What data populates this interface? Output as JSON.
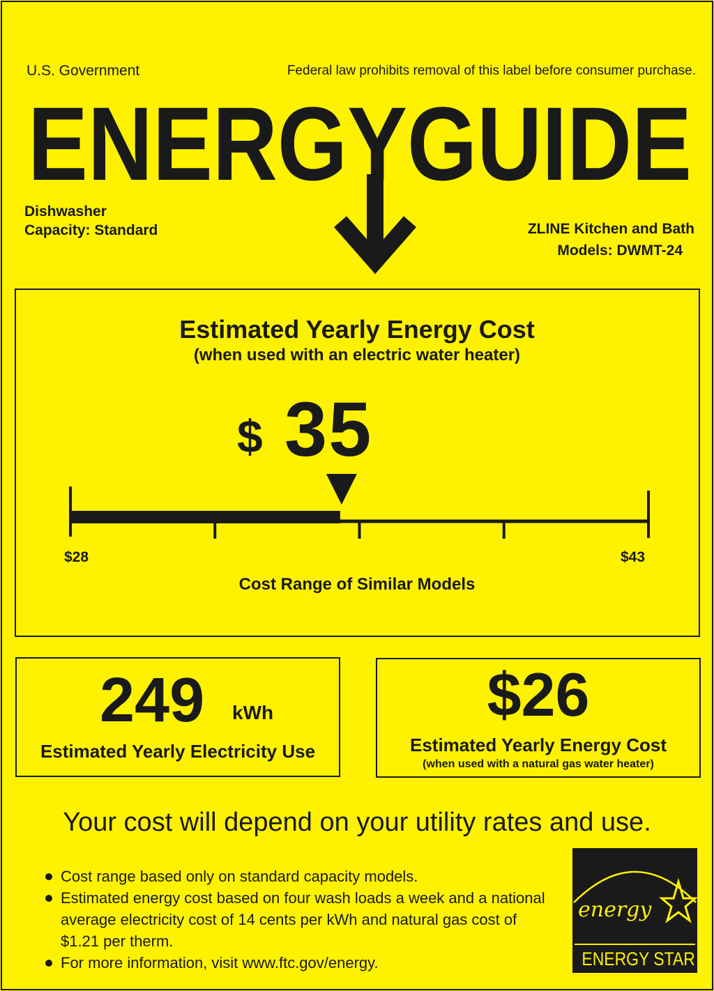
{
  "header": {
    "issuer": "U.S. Government",
    "notice": "Federal law prohibits removal of this label before consumer purchase.",
    "title": "ENERGYGUIDE"
  },
  "product": {
    "type": "Dishwasher",
    "capacity": "Capacity: Standard",
    "manufacturer": "ZLINE Kitchen and Bath",
    "models": "Models: DWMT-24"
  },
  "main_cost": {
    "heading": "Estimated Yearly Energy Cost",
    "subheading": "(when used with an electric water heater)",
    "currency": "$",
    "value": "35",
    "value_number": 35,
    "range_min": 28,
    "range_max": 43,
    "range_min_label": "$28",
    "range_max_label": "$43",
    "range_caption": "Cost Range of Similar Models"
  },
  "electricity": {
    "value": "249",
    "unit": "kWh",
    "label": "Estimated Yearly Electricity Use"
  },
  "gas_cost": {
    "value": "$26",
    "label": "Estimated Yearly Energy Cost",
    "sublabel": "(when used with a natural gas water heater)"
  },
  "disclaimer": "Your cost will depend on your utility rates and use.",
  "notes": [
    "Cost range based only on standard capacity models.",
    "Estimated energy cost based on four wash loads a week and a national average electricity cost of 14 cents per kWh and natural gas cost of $1.21 per therm.",
    "For more information, visit www.ftc.gov/energy."
  ],
  "logo": {
    "script_text": "energy",
    "label": "ENERGY STAR"
  },
  "colors": {
    "background": "#fff200",
    "ink": "#1a1a1a"
  }
}
